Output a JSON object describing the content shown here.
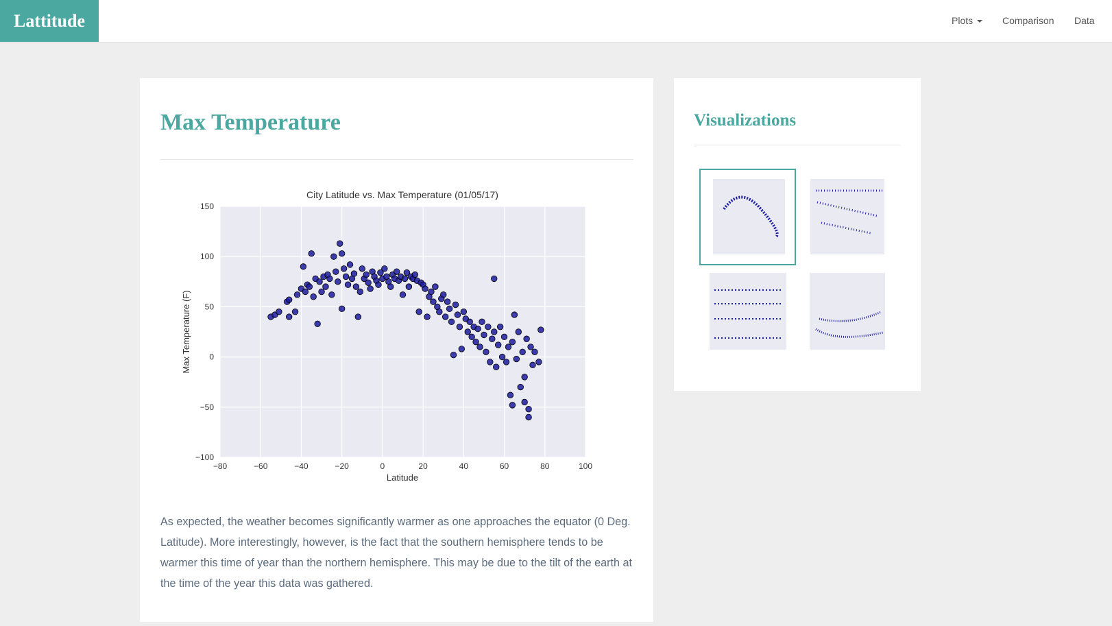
{
  "nav": {
    "brand": "Lattitude",
    "items": [
      "Plots",
      "Comparison",
      "Data"
    ]
  },
  "main": {
    "title": "Max Temperature",
    "paragraph": "As expected, the weather becomes significantly warmer as one approaches the equator (0 Deg. Latitude). More interestingly, however, is the fact that the southern hemisphere tends to be warmer this time of year than the northern hemisphere. This may be due to the tilt of the earth at the time of the year this data was gathered."
  },
  "sidebar": {
    "title": "Visualizations"
  },
  "chart_data": {
    "type": "scatter",
    "title": "City Latitude vs. Max Temperature (01/05/17)",
    "xlabel": "Latitude",
    "ylabel": "Max Temperature (F)",
    "color": "#1c1ca0",
    "grid": true,
    "xlim": [
      -80,
      100
    ],
    "xticks": [
      {
        "value": -80,
        "label": "−80"
      },
      {
        "value": -60,
        "label": "−60"
      },
      {
        "value": -40,
        "label": "−40"
      },
      {
        "value": -20,
        "label": "−20"
      },
      0,
      20,
      40,
      60,
      80,
      100
    ],
    "ylim": [
      -100,
      150
    ],
    "yticks": [
      {
        "value": -100,
        "label": "−100"
      },
      {
        "value": -50,
        "label": "−50"
      },
      0,
      50,
      100,
      150
    ],
    "x": [
      -55,
      -53,
      -51,
      -47,
      -46,
      -46,
      -43,
      -42,
      -40,
      -39,
      -38,
      -37,
      -36,
      -35,
      -34,
      -33,
      -32,
      -31,
      -30,
      -29,
      -28,
      -27,
      -26,
      -25,
      -24,
      -23,
      -22,
      -21,
      -20,
      -20,
      -19,
      -18,
      -17,
      -16,
      -15,
      -14,
      -13,
      -12,
      -11,
      -10,
      -9,
      -8,
      -7,
      -6,
      -5,
      -4,
      -3,
      -2,
      -1,
      0,
      1,
      2,
      3,
      4,
      5,
      6,
      7,
      8,
      9,
      10,
      11,
      12,
      13,
      14,
      15,
      16,
      17,
      18,
      19,
      20,
      21,
      22,
      23,
      24,
      25,
      26,
      27,
      28,
      29,
      30,
      31,
      32,
      33,
      34,
      35,
      36,
      37,
      38,
      39,
      40,
      41,
      42,
      43,
      44,
      45,
      46,
      47,
      48,
      49,
      50,
      51,
      52,
      53,
      54,
      55,
      55,
      56,
      57,
      58,
      59,
      60,
      61,
      62,
      63,
      64,
      64,
      65,
      66,
      67,
      68,
      69,
      70,
      70,
      71,
      72,
      72,
      73,
      74,
      75,
      78,
      77
    ],
    "y": [
      40,
      42,
      45,
      55,
      57,
      40,
      45,
      62,
      68,
      90,
      65,
      72,
      70,
      103,
      60,
      78,
      33,
      75,
      65,
      80,
      70,
      82,
      78,
      62,
      100,
      85,
      75,
      113,
      103,
      48,
      88,
      80,
      72,
      92,
      78,
      83,
      70,
      40,
      65,
      88,
      78,
      82,
      74,
      68,
      85,
      80,
      76,
      72,
      84,
      78,
      88,
      80,
      75,
      70,
      82,
      78,
      85,
      76,
      80,
      62,
      78,
      84,
      70,
      80,
      78,
      82,
      76,
      45,
      74,
      72,
      68,
      40,
      60,
      65,
      55,
      70,
      50,
      45,
      58,
      62,
      40,
      55,
      48,
      35,
      2,
      52,
      42,
      30,
      8,
      45,
      38,
      25,
      35,
      20,
      30,
      15,
      28,
      10,
      35,
      22,
      5,
      30,
      -5,
      18,
      78,
      25,
      -10,
      12,
      30,
      0,
      20,
      -5,
      10,
      -38,
      15,
      -48,
      42,
      -2,
      25,
      -30,
      5,
      -45,
      -20,
      18,
      -52,
      -60,
      10,
      -8,
      5,
      27,
      -5
    ]
  }
}
